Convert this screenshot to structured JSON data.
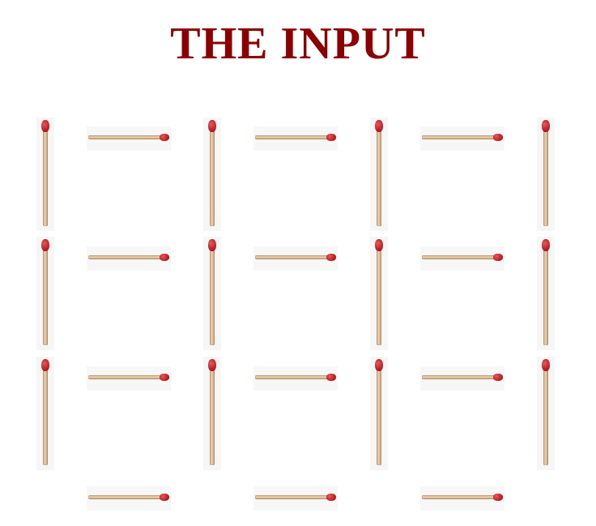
{
  "title": "THE INPUT",
  "colors": {
    "title": "#8b0000",
    "match_head": "#c4232a",
    "match_stick": "#e2c6a2"
  },
  "puzzle": {
    "type": "matchstick-grid",
    "cells": {
      "columns": 3,
      "rows": 3
    },
    "horizontal_matches": [
      {
        "row": 0,
        "col": 0
      },
      {
        "row": 0,
        "col": 1
      },
      {
        "row": 0,
        "col": 2
      },
      {
        "row": 1,
        "col": 0
      },
      {
        "row": 1,
        "col": 1
      },
      {
        "row": 1,
        "col": 2
      },
      {
        "row": 2,
        "col": 0
      },
      {
        "row": 2,
        "col": 1
      },
      {
        "row": 2,
        "col": 2
      },
      {
        "row": 3,
        "col": 0
      },
      {
        "row": 3,
        "col": 1
      },
      {
        "row": 3,
        "col": 2
      }
    ],
    "vertical_matches": [
      {
        "row": 0,
        "col": 0
      },
      {
        "row": 0,
        "col": 1
      },
      {
        "row": 0,
        "col": 2
      },
      {
        "row": 0,
        "col": 3
      },
      {
        "row": 1,
        "col": 0
      },
      {
        "row": 1,
        "col": 1
      },
      {
        "row": 1,
        "col": 2
      },
      {
        "row": 1,
        "col": 3
      },
      {
        "row": 2,
        "col": 0
      },
      {
        "row": 2,
        "col": 1
      },
      {
        "row": 2,
        "col": 2
      },
      {
        "row": 2,
        "col": 3
      }
    ]
  }
}
